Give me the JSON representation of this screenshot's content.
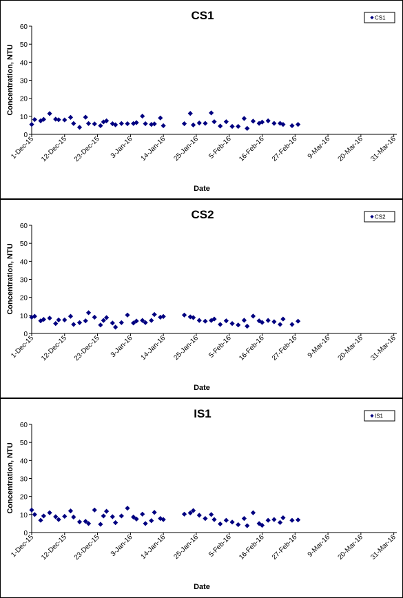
{
  "chart_data": [
    {
      "type": "scatter",
      "title": "CS1",
      "xlabel": "Date",
      "ylabel": "Concentration, NTU",
      "ylim": [
        0,
        60
      ],
      "yticks": [
        "0",
        "10",
        "20",
        "30",
        "40",
        "50",
        "60"
      ],
      "xticks": [
        "1-Dec-15",
        "12-Dec-15",
        "23-Dec-15",
        "3-Jan-16",
        "14-Jan-16",
        "25-Jan-16",
        "5-Feb-16",
        "16-Feb-16",
        "27-Feb-16",
        "9-Mar-16",
        "20-Mar-16",
        "31-Mar-16"
      ],
      "legend": "top-right",
      "color": "#000080",
      "series": [
        {
          "name": "CS1",
          "points": [
            [
              "2015-12-01",
              5.5
            ],
            [
              "2015-12-02",
              8.2
            ],
            [
              "2015-12-04",
              7.5
            ],
            [
              "2015-12-05",
              8.3
            ],
            [
              "2015-12-07",
              11.5
            ],
            [
              "2015-12-09",
              8.4
            ],
            [
              "2015-12-10",
              8.1
            ],
            [
              "2015-12-12",
              8.0
            ],
            [
              "2015-12-14",
              9.4
            ],
            [
              "2015-12-15",
              6.0
            ],
            [
              "2015-12-17",
              3.9
            ],
            [
              "2015-12-19",
              9.5
            ],
            [
              "2015-12-20",
              6.0
            ],
            [
              "2015-12-22",
              5.8
            ],
            [
              "2015-12-24",
              4.8
            ],
            [
              "2015-12-25",
              6.9
            ],
            [
              "2015-12-26",
              7.5
            ],
            [
              "2015-12-28",
              5.9
            ],
            [
              "2015-12-29",
              5.3
            ],
            [
              "2015-12-31",
              6.0
            ],
            [
              "2016-01-02",
              5.9
            ],
            [
              "2016-01-04",
              6.0
            ],
            [
              "2016-01-05",
              6.5
            ],
            [
              "2016-01-07",
              10.1
            ],
            [
              "2016-01-08",
              5.9
            ],
            [
              "2016-01-10",
              5.5
            ],
            [
              "2016-01-11",
              5.8
            ],
            [
              "2016-01-13",
              9.1
            ],
            [
              "2016-01-14",
              4.8
            ],
            [
              "2016-01-21",
              5.9
            ],
            [
              "2016-01-23",
              11.6
            ],
            [
              "2016-01-24",
              5.2
            ],
            [
              "2016-01-26",
              6.3
            ],
            [
              "2016-01-28",
              6.1
            ],
            [
              "2016-01-30",
              11.9
            ],
            [
              "2016-01-31",
              7.0
            ],
            [
              "2016-02-02",
              4.6
            ],
            [
              "2016-02-04",
              7.0
            ],
            [
              "2016-02-06",
              4.4
            ],
            [
              "2016-02-08",
              4.4
            ],
            [
              "2016-02-10",
              8.8
            ],
            [
              "2016-02-11",
              3.3
            ],
            [
              "2016-02-13",
              7.3
            ],
            [
              "2016-02-15",
              6.1
            ],
            [
              "2016-02-16",
              6.8
            ],
            [
              "2016-02-18",
              7.5
            ],
            [
              "2016-02-20",
              6.1
            ],
            [
              "2016-02-22",
              6.1
            ],
            [
              "2016-02-23",
              5.5
            ],
            [
              "2016-02-26",
              4.8
            ],
            [
              "2016-02-28",
              5.5
            ]
          ]
        }
      ]
    },
    {
      "type": "scatter",
      "title": "CS2",
      "xlabel": "Date",
      "ylabel": "Concentration, NTU",
      "ylim": [
        0,
        60
      ],
      "yticks": [
        "0",
        "10",
        "20",
        "30",
        "40",
        "50",
        "60"
      ],
      "xticks": [
        "1-Dec-15",
        "12-Dec-15",
        "23-Dec-15",
        "3-Jan-16",
        "14-Jan-16",
        "25-Jan-16",
        "5-Feb-16",
        "16-Feb-16",
        "27-Feb-16",
        "9-Mar-16",
        "20-Mar-16",
        "31-Mar-16"
      ],
      "legend": "top-right",
      "color": "#000080",
      "series": [
        {
          "name": "CS2",
          "points": [
            [
              "2015-12-01",
              9.0
            ],
            [
              "2015-12-02",
              9.5
            ],
            [
              "2015-12-04",
              7.0
            ],
            [
              "2015-12-05",
              7.8
            ],
            [
              "2015-12-07",
              8.5
            ],
            [
              "2015-12-09",
              5.5
            ],
            [
              "2015-12-10",
              7.5
            ],
            [
              "2015-12-12",
              7.5
            ],
            [
              "2015-12-14",
              9.5
            ],
            [
              "2015-12-15",
              5.0
            ],
            [
              "2015-12-17",
              6.0
            ],
            [
              "2015-12-19",
              7.0
            ],
            [
              "2015-12-20",
              11.5
            ],
            [
              "2015-12-22",
              9.0
            ],
            [
              "2015-12-24",
              4.7
            ],
            [
              "2015-12-25",
              7.2
            ],
            [
              "2015-12-26",
              8.8
            ],
            [
              "2015-12-28",
              5.8
            ],
            [
              "2015-12-29",
              3.5
            ],
            [
              "2015-12-31",
              6.0
            ],
            [
              "2016-01-02",
              10.2
            ],
            [
              "2016-01-04",
              5.8
            ],
            [
              "2016-01-05",
              6.9
            ],
            [
              "2016-01-07",
              7.2
            ],
            [
              "2016-01-08",
              6.0
            ],
            [
              "2016-01-10",
              7.2
            ],
            [
              "2016-01-11",
              10.5
            ],
            [
              "2016-01-13",
              9.0
            ],
            [
              "2016-01-14",
              9.4
            ],
            [
              "2016-01-21",
              10.2
            ],
            [
              "2016-01-23",
              9.2
            ],
            [
              "2016-01-24",
              8.8
            ],
            [
              "2016-01-26",
              7.2
            ],
            [
              "2016-01-28",
              6.8
            ],
            [
              "2016-01-30",
              7.2
            ],
            [
              "2016-01-31",
              8.0
            ],
            [
              "2016-02-02",
              5.0
            ],
            [
              "2016-02-04",
              7.0
            ],
            [
              "2016-02-06",
              5.5
            ],
            [
              "2016-02-08",
              4.7
            ],
            [
              "2016-02-10",
              7.3
            ],
            [
              "2016-02-11",
              4.0
            ],
            [
              "2016-02-13",
              9.6
            ],
            [
              "2016-02-15",
              7.0
            ],
            [
              "2016-02-16",
              6.1
            ],
            [
              "2016-02-18",
              7.2
            ],
            [
              "2016-02-20",
              6.5
            ],
            [
              "2016-02-22",
              5.0
            ],
            [
              "2016-02-23",
              8.0
            ],
            [
              "2016-02-26",
              5.0
            ],
            [
              "2016-02-28",
              6.8
            ]
          ]
        }
      ]
    },
    {
      "type": "scatter",
      "title": "IS1",
      "xlabel": "Date",
      "ylabel": "Concentration, NTU",
      "ylim": [
        0,
        60
      ],
      "yticks": [
        "0",
        "10",
        "20",
        "30",
        "40",
        "50",
        "60"
      ],
      "xticks": [
        "1-Dec-15",
        "12-Dec-15",
        "23-Dec-15",
        "3-Jan-16",
        "14-Jan-16",
        "25-Jan-16",
        "5-Feb-16",
        "16-Feb-16",
        "27-Feb-16",
        "9-Mar-16",
        "20-Mar-16",
        "31-Mar-16"
      ],
      "legend": "top-right",
      "color": "#000080",
      "series": [
        {
          "name": "IS1",
          "points": [
            [
              "2015-12-01",
              12.5
            ],
            [
              "2015-12-02",
              10.0
            ],
            [
              "2015-12-04",
              6.8
            ],
            [
              "2015-12-05",
              9.2
            ],
            [
              "2015-12-07",
              11.0
            ],
            [
              "2015-12-09",
              8.8
            ],
            [
              "2015-12-10",
              7.2
            ],
            [
              "2015-12-12",
              9.0
            ],
            [
              "2015-12-14",
              12.0
            ],
            [
              "2015-12-15",
              8.6
            ],
            [
              "2015-12-17",
              5.9
            ],
            [
              "2015-12-19",
              6.2
            ],
            [
              "2015-12-20",
              5.0
            ],
            [
              "2015-12-22",
              12.5
            ],
            [
              "2015-12-24",
              4.6
            ],
            [
              "2015-12-25",
              9.2
            ],
            [
              "2015-12-26",
              11.8
            ],
            [
              "2015-12-28",
              8.8
            ],
            [
              "2015-12-29",
              5.5
            ],
            [
              "2015-12-31",
              9.2
            ],
            [
              "2016-01-02",
              13.5
            ],
            [
              "2016-01-04",
              8.6
            ],
            [
              "2016-01-05",
              7.5
            ],
            [
              "2016-01-07",
              10.2
            ],
            [
              "2016-01-08",
              5.0
            ],
            [
              "2016-01-10",
              6.6
            ],
            [
              "2016-01-11",
              11.2
            ],
            [
              "2016-01-13",
              7.8
            ],
            [
              "2016-01-14",
              7.2
            ],
            [
              "2016-01-21",
              10.2
            ],
            [
              "2016-01-23",
              10.9
            ],
            [
              "2016-01-24",
              12.2
            ],
            [
              "2016-01-26",
              9.6
            ],
            [
              "2016-01-28",
              7.8
            ],
            [
              "2016-01-30",
              10.0
            ],
            [
              "2016-01-31",
              7.2
            ],
            [
              "2016-02-02",
              4.8
            ],
            [
              "2016-02-04",
              6.8
            ],
            [
              "2016-02-06",
              5.8
            ],
            [
              "2016-02-08",
              4.4
            ],
            [
              "2016-02-10",
              7.8
            ],
            [
              "2016-02-11",
              3.8
            ],
            [
              "2016-02-13",
              11.0
            ],
            [
              "2016-02-15",
              5.0
            ],
            [
              "2016-02-16",
              4.0
            ],
            [
              "2016-02-18",
              6.8
            ],
            [
              "2016-02-20",
              7.2
            ],
            [
              "2016-02-22",
              5.6
            ],
            [
              "2016-02-23",
              8.2
            ],
            [
              "2016-02-26",
              6.8
            ],
            [
              "2016-02-28",
              7.0
            ]
          ]
        }
      ]
    }
  ]
}
